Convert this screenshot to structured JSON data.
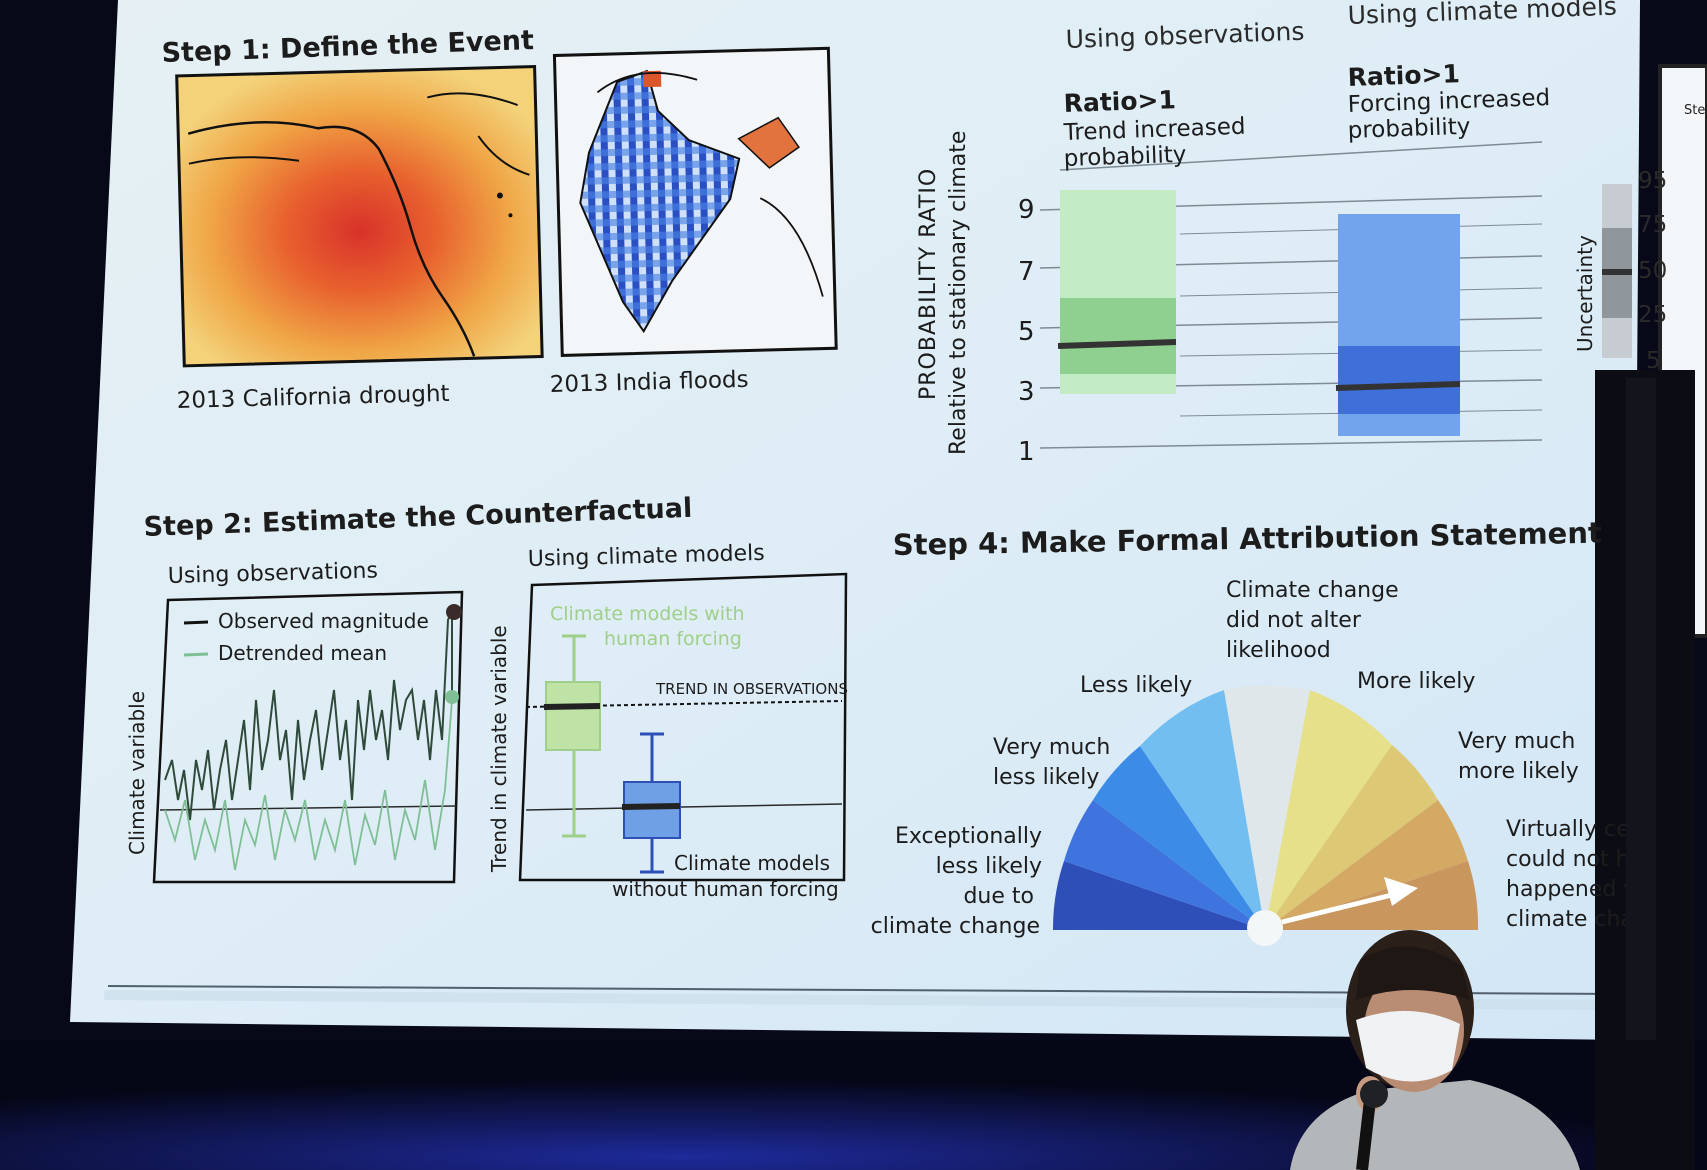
{
  "step1": {
    "title": "Step 1: Define the Event",
    "caption_left": "2013 California drought",
    "caption_right": "2013 India floods"
  },
  "step2": {
    "title": "Step 2: Estimate the Counterfactual",
    "obs_heading": "Using observations",
    "models_heading": "Using climate models",
    "obs_ylabel": "Climate variable",
    "models_ylabel": "Trend in climate variable",
    "legend_observed": "Observed magnitude",
    "legend_detrended": "Detrended mean",
    "with_forcing_line1": "Climate models with",
    "with_forcing_line2": "human forcing",
    "trend_label": "TREND IN OBSERVATIONS",
    "without_forcing_line1": "Climate models",
    "without_forcing_line2": "without human forcing"
  },
  "step3": {
    "heading_obs": "Using observations",
    "heading_models": "Using climate models",
    "ylabel_line1": "PROBABILITY RATIO",
    "ylabel_line2": "Relative to stationary climate",
    "obs_ratio": "Ratio>1",
    "obs_desc1": "Trend increased",
    "obs_desc2": "probability",
    "models_ratio": "Ratio>1",
    "models_desc1": "Forcing increased",
    "models_desc2": "probability",
    "yticks": [
      "9",
      "7",
      "5",
      "3",
      "1"
    ],
    "uncertainty_label": "Uncertainty",
    "uncertainty_ticks": [
      "95",
      "75",
      "50",
      "25",
      "5"
    ]
  },
  "step4": {
    "title": "Step 4: Make Formal Attribution Statement",
    "label_no_change": [
      "Climate change",
      "did not alter",
      "likelihood"
    ],
    "label_less": "Less likely",
    "label_more": "More likely",
    "label_very_less": [
      "Very much",
      "less likely"
    ],
    "label_very_more": [
      "Very much",
      "more likely"
    ],
    "label_exceptional": [
      "Exceptionally",
      "less likely",
      "due to",
      "climate change"
    ],
    "label_virtually": [
      "Virtually ce",
      "could not h",
      "happened v",
      "climate cha"
    ]
  },
  "side_panel_label": "Ste",
  "colors": {
    "slide_bg": "#dfeef6",
    "obs_green": "#8fcf8f",
    "models_blue": "#3f6fd8",
    "drought_red": "#e04a2a",
    "gauge_dark_blue": "#2f4fb8",
    "gauge_tan": "#c9975e"
  }
}
